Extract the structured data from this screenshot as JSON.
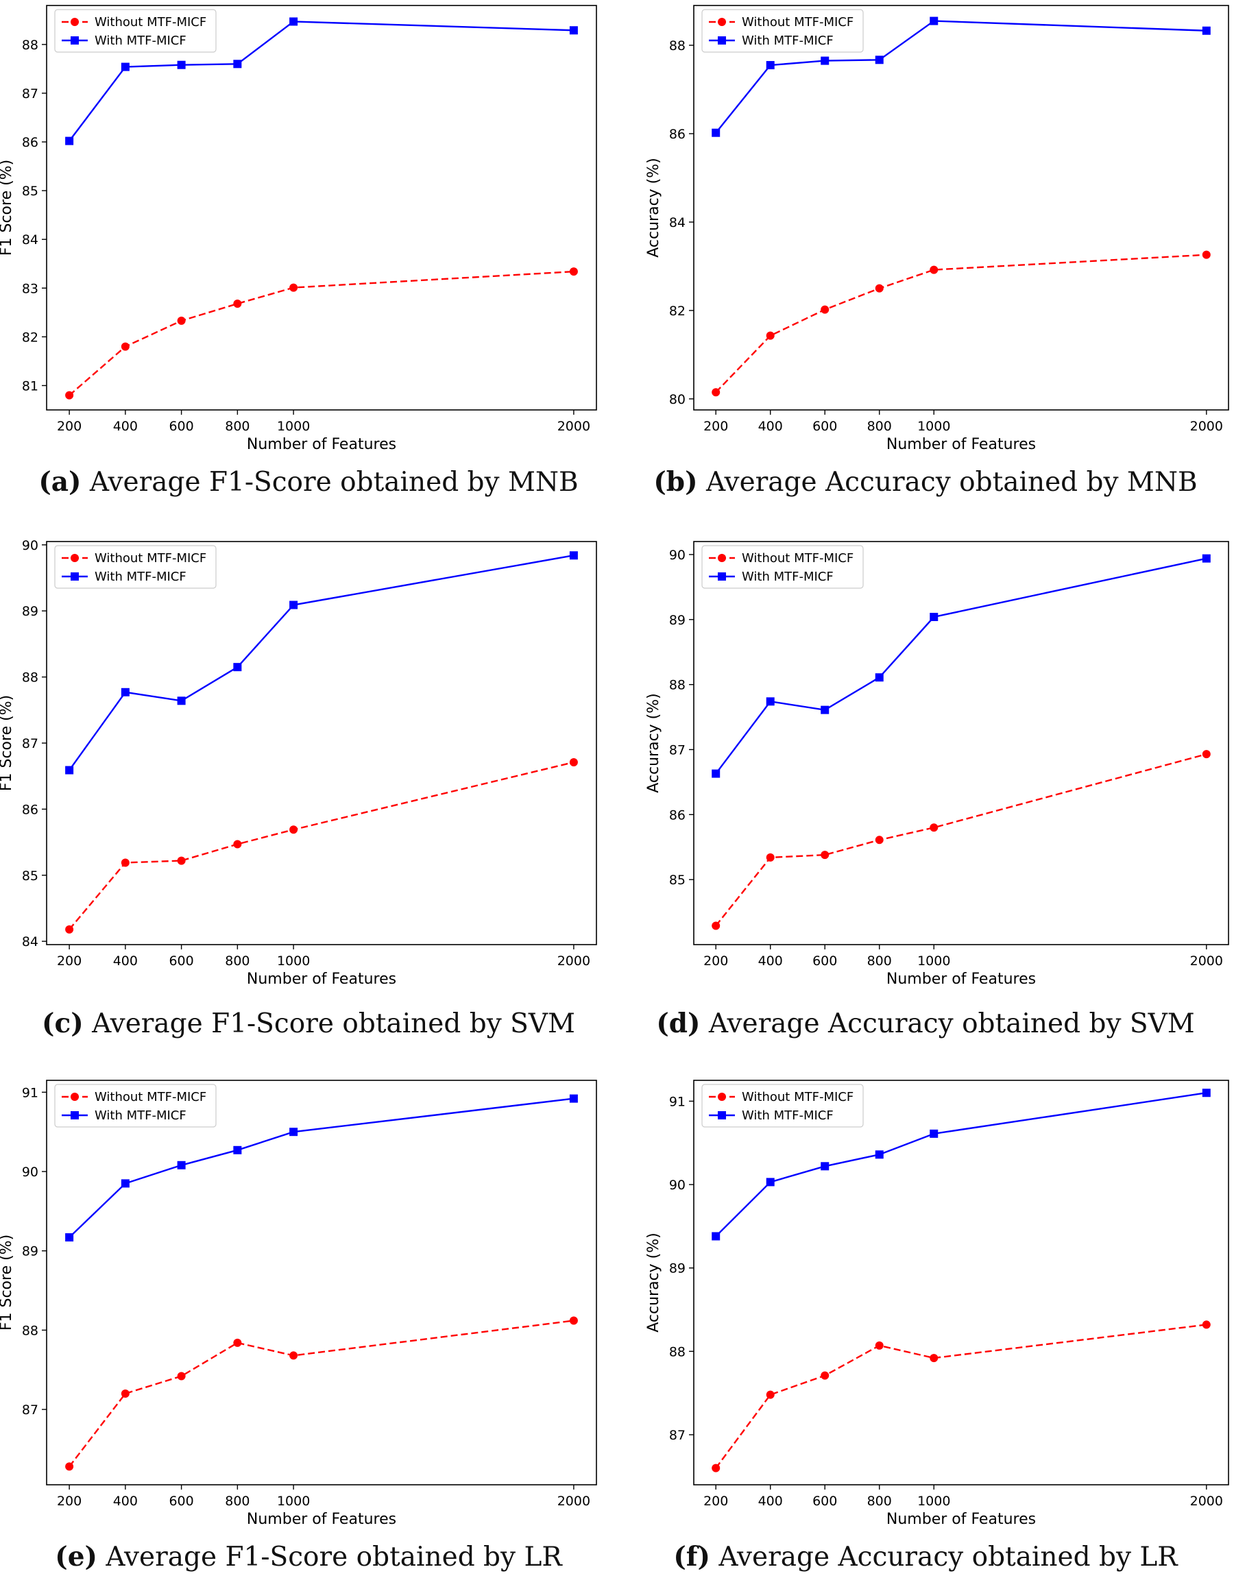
{
  "chart_data": [
    {
      "id": "a",
      "type": "line",
      "caption_letter": "(a)",
      "caption_text": "Average F1-Score obtained by MNB",
      "xlabel": "Number of Features",
      "ylabel": "F1 Score (%)",
      "categories": [
        "200",
        "400",
        "600",
        "800",
        "1000",
        "2000"
      ],
      "x": [
        200,
        400,
        600,
        800,
        1000,
        2000
      ],
      "ylim": [
        80.5,
        88.8
      ],
      "yticks": [
        81,
        82,
        83,
        84,
        85,
        86,
        87,
        88
      ],
      "legend_position": "top-left",
      "series": [
        {
          "name": "Without MTF-MICF",
          "color": "#ff0000",
          "style": "dashed",
          "marker": "circle",
          "values": [
            80.8,
            81.8,
            82.33,
            82.68,
            83.01,
            83.34
          ]
        },
        {
          "name": "With MTF-MICF",
          "color": "#0000ff",
          "style": "solid",
          "marker": "square",
          "values": [
            86.02,
            87.54,
            87.58,
            87.6,
            88.47,
            88.29
          ]
        }
      ]
    },
    {
      "id": "b",
      "type": "line",
      "caption_letter": "(b)",
      "caption_text": "Average Accuracy obtained by MNB",
      "xlabel": "Number of Features",
      "ylabel": "Accuracy (%)",
      "categories": [
        "200",
        "400",
        "600",
        "800",
        "1000",
        "2000"
      ],
      "x": [
        200,
        400,
        600,
        800,
        1000,
        2000
      ],
      "ylim": [
        79.75,
        88.9
      ],
      "yticks": [
        80,
        82,
        84,
        86,
        88
      ],
      "legend_position": "top-left",
      "series": [
        {
          "name": "Without MTF-MICF",
          "color": "#ff0000",
          "style": "dashed",
          "marker": "circle",
          "values": [
            80.15,
            81.43,
            82.02,
            82.5,
            82.92,
            83.26
          ]
        },
        {
          "name": "With MTF-MICF",
          "color": "#0000ff",
          "style": "solid",
          "marker": "square",
          "values": [
            86.02,
            87.55,
            87.65,
            87.67,
            88.55,
            88.33
          ]
        }
      ]
    },
    {
      "id": "c",
      "type": "line",
      "caption_letter": "(c)",
      "caption_text": "Average F1-Score obtained by SVM",
      "xlabel": "Number of Features",
      "ylabel": "F1 Score (%)",
      "categories": [
        "200",
        "400",
        "600",
        "800",
        "1000",
        "2000"
      ],
      "x": [
        200,
        400,
        600,
        800,
        1000,
        2000
      ],
      "ylim": [
        83.95,
        90.05
      ],
      "yticks": [
        84,
        85,
        86,
        87,
        88,
        89,
        90
      ],
      "legend_position": "top-left",
      "series": [
        {
          "name": "Without MTF-MICF",
          "color": "#ff0000",
          "style": "dashed",
          "marker": "circle",
          "values": [
            84.18,
            85.19,
            85.22,
            85.47,
            85.69,
            86.71
          ]
        },
        {
          "name": "With MTF-MICF",
          "color": "#0000ff",
          "style": "solid",
          "marker": "square",
          "values": [
            86.59,
            87.77,
            87.64,
            88.15,
            89.09,
            89.84
          ]
        }
      ]
    },
    {
      "id": "d",
      "type": "line",
      "caption_letter": "(d)",
      "caption_text": "Average Accuracy obtained by SVM",
      "xlabel": "Number of Features",
      "ylabel": "Accuracy (%)",
      "categories": [
        "200",
        "400",
        "600",
        "800",
        "1000",
        "2000"
      ],
      "x": [
        200,
        400,
        600,
        800,
        1000,
        2000
      ],
      "ylim": [
        84.0,
        90.2
      ],
      "yticks": [
        85,
        86,
        87,
        88,
        89,
        90
      ],
      "legend_position": "top-left",
      "series": [
        {
          "name": "Without MTF-MICF",
          "color": "#ff0000",
          "style": "dashed",
          "marker": "circle",
          "values": [
            84.29,
            85.34,
            85.38,
            85.61,
            85.8,
            86.93
          ]
        },
        {
          "name": "With MTF-MICF",
          "color": "#0000ff",
          "style": "solid",
          "marker": "square",
          "values": [
            86.63,
            87.74,
            87.61,
            88.11,
            89.04,
            89.94
          ]
        }
      ]
    },
    {
      "id": "e",
      "type": "line",
      "caption_letter": "(e)",
      "caption_text": "Average F1-Score obtained by LR",
      "xlabel": "Number of Features",
      "ylabel": "F1 Score (%)",
      "categories": [
        "200",
        "400",
        "600",
        "800",
        "1000",
        "2000"
      ],
      "x": [
        200,
        400,
        600,
        800,
        1000,
        2000
      ],
      "ylim": [
        86.05,
        91.15
      ],
      "yticks": [
        87,
        88,
        89,
        90,
        91
      ],
      "legend_position": "top-left",
      "series": [
        {
          "name": "Without MTF-MICF",
          "color": "#ff0000",
          "style": "dashed",
          "marker": "circle",
          "values": [
            86.28,
            87.2,
            87.42,
            87.84,
            87.68,
            88.12
          ]
        },
        {
          "name": "With MTF-MICF",
          "color": "#0000ff",
          "style": "solid",
          "marker": "square",
          "values": [
            89.17,
            89.85,
            90.08,
            90.27,
            90.5,
            90.92
          ]
        }
      ]
    },
    {
      "id": "f",
      "type": "line",
      "caption_letter": "(f)",
      "caption_text": "Average Accuracy obtained by LR",
      "xlabel": "Number of Features",
      "ylabel": "Accuracy (%)",
      "categories": [
        "200",
        "400",
        "600",
        "800",
        "1000",
        "2000"
      ],
      "x": [
        200,
        400,
        600,
        800,
        1000,
        2000
      ],
      "ylim": [
        86.4,
        91.25
      ],
      "yticks": [
        87,
        88,
        89,
        90,
        91
      ],
      "legend_position": "top-left",
      "series": [
        {
          "name": "Without MTF-MICF",
          "color": "#ff0000",
          "style": "dashed",
          "marker": "circle",
          "values": [
            86.6,
            87.48,
            87.71,
            88.07,
            87.92,
            88.32
          ]
        },
        {
          "name": "With MTF-MICF",
          "color": "#0000ff",
          "style": "solid",
          "marker": "square",
          "values": [
            89.38,
            90.03,
            90.22,
            90.36,
            90.61,
            91.1
          ]
        }
      ]
    }
  ]
}
